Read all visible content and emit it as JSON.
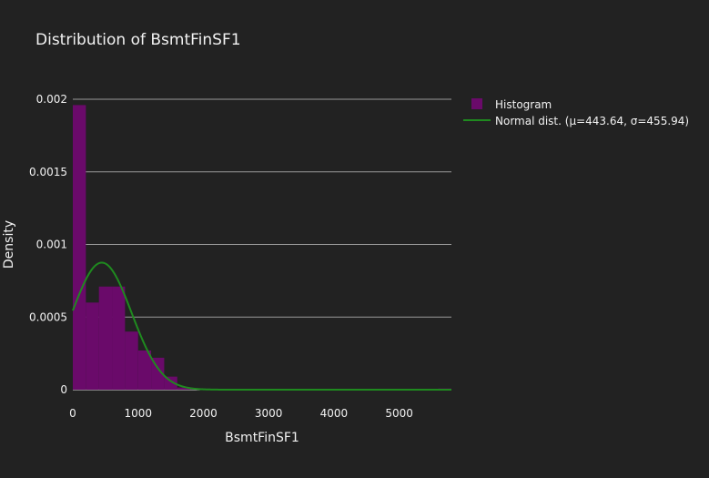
{
  "chart_data": {
    "type": "bar",
    "title": "Distribution of BsmtFinSF1",
    "xlabel": "BsmtFinSF1",
    "ylabel": "Density",
    "xlim": [
      0,
      5800
    ],
    "ylim": [
      0,
      0.002
    ],
    "x_ticks": [
      0,
      1000,
      2000,
      3000,
      4000,
      5000
    ],
    "x_tick_labels": [
      "0",
      "1000",
      "2000",
      "3000",
      "4000",
      "5000"
    ],
    "y_ticks": [
      0,
      0.0005,
      0.001,
      0.0015,
      0.002
    ],
    "y_tick_labels": [
      "0",
      "0.0005",
      "0.001",
      "0.0015",
      "0.002"
    ],
    "grid": true,
    "legend_position": "top-right",
    "bin_width": 200,
    "series": [
      {
        "name": "Histogram",
        "kind": "histogram",
        "color": "#6a0a6a",
        "bins": [
          {
            "x0": 0,
            "x1": 200,
            "y": 0.00196
          },
          {
            "x0": 200,
            "x1": 400,
            "y": 0.0006
          },
          {
            "x0": 400,
            "x1": 600,
            "y": 0.00071
          },
          {
            "x0": 600,
            "x1": 800,
            "y": 0.00071
          },
          {
            "x0": 800,
            "x1": 1000,
            "y": 0.0004
          },
          {
            "x0": 1000,
            "x1": 1200,
            "y": 0.00027
          },
          {
            "x0": 1200,
            "x1": 1400,
            "y": 0.00022
          },
          {
            "x0": 1400,
            "x1": 1600,
            "y": 9e-05
          },
          {
            "x0": 1600,
            "x1": 1800,
            "y": 1.5e-05
          },
          {
            "x0": 1800,
            "x1": 2000,
            "y": 8e-06
          },
          {
            "x0": 2000,
            "x1": 2200,
            "y": 4e-06
          },
          {
            "x0": 5600,
            "x1": 5800,
            "y": 8e-06
          }
        ]
      },
      {
        "name": "Normal dist. (μ=443.64, σ=455.94)",
        "kind": "normal_curve",
        "color": "#1f8a1f",
        "mu": 443.64,
        "sigma": 455.94
      }
    ]
  }
}
